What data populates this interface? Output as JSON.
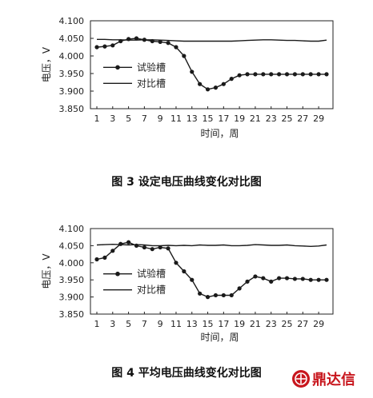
{
  "chart_data": [
    {
      "type": "line",
      "caption": "图 3   设定电压曲线变化对比图",
      "xlabel": "时间，周",
      "ylabel": "电压，V",
      "ylim": [
        3.85,
        4.1
      ],
      "yticks": [
        "4.100",
        "4.050",
        "4.000",
        "3.950",
        "3.900",
        "3.850"
      ],
      "ytick_values": [
        4.1,
        4.05,
        4.0,
        3.95,
        3.9,
        3.85
      ],
      "xlim": [
        1,
        30
      ],
      "xticks": [
        1,
        3,
        5,
        7,
        9,
        11,
        13,
        15,
        17,
        19,
        21,
        23,
        25,
        27,
        29
      ],
      "legend_position": "left-middle",
      "series": [
        {
          "name": "试验槽",
          "style": "line-with-markers",
          "x": [
            1,
            2,
            3,
            4,
            5,
            6,
            7,
            8,
            9,
            10,
            11,
            12,
            13,
            14,
            15,
            16,
            17,
            18,
            19,
            20,
            21,
            22,
            23,
            24,
            25,
            26,
            27,
            28,
            29,
            30
          ],
          "y": [
            4.025,
            4.027,
            4.03,
            4.042,
            4.048,
            4.05,
            4.046,
            4.042,
            4.04,
            4.037,
            4.025,
            4.0,
            3.955,
            3.92,
            3.905,
            3.91,
            3.92,
            3.935,
            3.945,
            3.948,
            3.948,
            3.948,
            3.948,
            3.948,
            3.948,
            3.948,
            3.948,
            3.948,
            3.948,
            3.948
          ]
        },
        {
          "name": "对比槽",
          "style": "line",
          "x": [
            1,
            2,
            3,
            4,
            5,
            6,
            7,
            8,
            9,
            10,
            11,
            12,
            13,
            14,
            15,
            16,
            17,
            18,
            19,
            20,
            21,
            22,
            23,
            24,
            25,
            26,
            27,
            28,
            29,
            30
          ],
          "y": [
            4.047,
            4.047,
            4.046,
            4.046,
            4.045,
            4.045,
            4.046,
            4.046,
            4.045,
            4.044,
            4.043,
            4.042,
            4.042,
            4.042,
            4.042,
            4.042,
            4.042,
            4.042,
            4.043,
            4.044,
            4.045,
            4.046,
            4.046,
            4.045,
            4.044,
            4.044,
            4.043,
            4.042,
            4.042,
            4.045
          ]
        }
      ]
    },
    {
      "type": "line",
      "caption": "图 4   平均电压曲线变化对比图",
      "xlabel": "时间，周",
      "ylabel": "电压，V",
      "ylim": [
        3.85,
        4.1
      ],
      "yticks": [
        "4.100",
        "4.050",
        "4.000",
        "3.950",
        "3.900",
        "3.850"
      ],
      "ytick_values": [
        4.1,
        4.05,
        4.0,
        3.95,
        3.9,
        3.85
      ],
      "xlim": [
        1,
        30
      ],
      "xticks": [
        1,
        3,
        5,
        7,
        9,
        11,
        13,
        15,
        17,
        19,
        21,
        23,
        25,
        27,
        29
      ],
      "legend_position": "left-middle",
      "series": [
        {
          "name": "试验槽",
          "style": "line-with-markers",
          "x": [
            1,
            2,
            3,
            4,
            5,
            6,
            7,
            8,
            9,
            10,
            11,
            12,
            13,
            14,
            15,
            16,
            17,
            18,
            19,
            20,
            21,
            22,
            23,
            24,
            25,
            26,
            27,
            28,
            29,
            30
          ],
          "y": [
            4.01,
            4.015,
            4.035,
            4.055,
            4.06,
            4.05,
            4.045,
            4.04,
            4.045,
            4.042,
            4.0,
            3.975,
            3.95,
            3.91,
            3.9,
            3.905,
            3.905,
            3.905,
            3.925,
            3.945,
            3.96,
            3.955,
            3.945,
            3.955,
            3.955,
            3.953,
            3.953,
            3.95,
            3.95,
            3.95
          ]
        },
        {
          "name": "对比槽",
          "style": "line",
          "x": [
            1,
            2,
            3,
            4,
            5,
            6,
            7,
            8,
            9,
            10,
            11,
            12,
            13,
            14,
            15,
            16,
            17,
            18,
            19,
            20,
            21,
            22,
            23,
            24,
            25,
            26,
            27,
            28,
            29,
            30
          ],
          "y": [
            4.052,
            4.053,
            4.054,
            4.053,
            4.052,
            4.053,
            4.052,
            4.05,
            4.05,
            4.051,
            4.05,
            4.051,
            4.05,
            4.052,
            4.051,
            4.051,
            4.052,
            4.05,
            4.05,
            4.051,
            4.053,
            4.052,
            4.051,
            4.051,
            4.052,
            4.05,
            4.049,
            4.048,
            4.049,
            4.052
          ]
        }
      ]
    }
  ],
  "watermark": {
    "text": "鼎达信",
    "icon": "dingdaxin-logo-icon",
    "color": "#c8161d"
  }
}
